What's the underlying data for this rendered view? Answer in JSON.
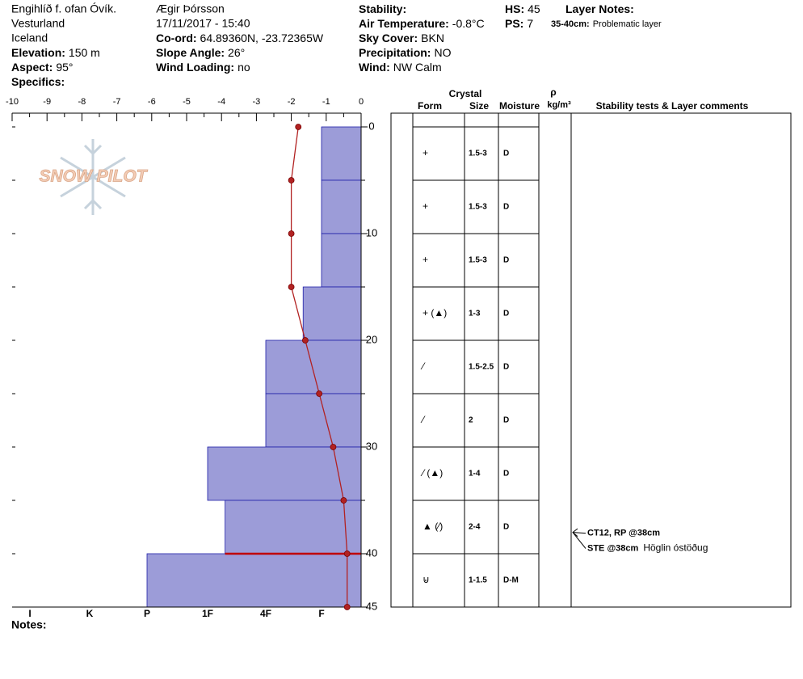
{
  "header": {
    "columns": [
      {
        "lines": [
          "Engihlíð f. ofan Óvík.",
          "Vesturland",
          "Iceland",
          {
            "label": "Elevation:",
            "value": "150 m"
          },
          {
            "label": "Aspect:",
            "value": "95°"
          },
          {
            "label": "Specifics:"
          }
        ]
      },
      {
        "lines": [
          "Ægir Þórsson",
          "17/11/2017 - 15:40",
          {
            "label": "Co-ord:",
            "value": "64.89360N, -23.72365W"
          },
          {
            "label": "Slope Angle:",
            "value": "26°"
          },
          {
            "label": "Wind Loading:",
            "value": "no"
          }
        ]
      },
      {
        "lines": [
          {
            "label": "Stability:"
          },
          {
            "label": "Air Temperature:",
            "value": "-0.8°C"
          },
          {
            "label": "Sky Cover:",
            "value": "BKN"
          },
          {
            "label": "Precipitation:",
            "value": "NO"
          },
          {
            "label": "Wind:",
            "value": "NW Calm"
          }
        ]
      },
      {
        "lines": [
          {
            "label": "HS:",
            "value": "45"
          },
          {
            "label": "PS:",
            "value": "7"
          }
        ]
      },
      {
        "lines": [
          {
            "label": "Layer Notes:"
          },
          {
            "label": "35-40cm:",
            "value": "Problematic layer"
          }
        ]
      }
    ]
  },
  "logo": "SNOW PILOT",
  "chart_data": {
    "type": "snow-profile",
    "xlim": [
      -10,
      0
    ],
    "xticks": [
      -10,
      -9,
      -8,
      -7,
      -6,
      -5,
      -4,
      -3,
      -2,
      -1,
      0
    ],
    "ylim": [
      0,
      45
    ],
    "yticks": [
      0,
      10,
      20,
      30,
      40,
      45
    ],
    "temperature": {
      "depth": [
        0,
        5,
        10,
        15,
        20,
        25,
        30,
        35,
        40,
        45
      ],
      "values": [
        -1.8,
        -2.0,
        -2.0,
        -2.0,
        -1.6,
        -1.2,
        -0.8,
        -0.5,
        -0.4,
        -0.4
      ],
      "color": "#b22222"
    },
    "hardness_ticks": [
      {
        "value": 6,
        "label": "I"
      },
      {
        "value": 5,
        "label": "K"
      },
      {
        "value": 4,
        "label": "P"
      },
      {
        "value": 3,
        "label": "1F"
      },
      {
        "value": 2,
        "label": "4F"
      },
      {
        "value": 1,
        "label": "F"
      }
    ],
    "layers": {
      "top": [
        0,
        5,
        10,
        15,
        20,
        25,
        30,
        35,
        40
      ],
      "bottom": [
        5,
        10,
        15,
        20,
        25,
        30,
        35,
        40,
        45
      ],
      "hardness": [
        1,
        1,
        1,
        1.33,
        2,
        2,
        3,
        2.7,
        4
      ],
      "color": "#9c9cd8"
    },
    "problem_line_depth": 40,
    "notes_label": "Notes:"
  },
  "table": {
    "group_header": "Crystal",
    "headers": [
      "Form",
      "Size",
      "Moisture",
      "ρ",
      "kg/m³",
      "Stability tests & Layer comments"
    ],
    "rows": [
      {
        "form": "+",
        "size": "1.5-3",
        "moisture": "D"
      },
      {
        "form": "+",
        "size": "1.5-3",
        "moisture": "D"
      },
      {
        "form": "+",
        "size": "1.5-3",
        "moisture": "D"
      },
      {
        "form": "+ (▲)",
        "size": "1-3",
        "moisture": "D"
      },
      {
        "form": "⁄",
        "size": "1.5-2.5",
        "moisture": "D"
      },
      {
        "form": "⁄",
        "size": "2",
        "moisture": "D"
      },
      {
        "form": "⁄ (▲)",
        "size": "1-4",
        "moisture": "D"
      },
      {
        "form": "▲ (⁄)",
        "size": "2-4",
        "moisture": "D"
      },
      {
        "form": "⊌",
        "size": "1-1.5",
        "moisture": "D-M"
      }
    ],
    "comments": {
      "depth": 38,
      "items": [
        {
          "test": "CT12, RP @38cm"
        },
        {
          "test": "STE @38cm",
          "note": "Höglin óstöðug"
        }
      ]
    }
  }
}
